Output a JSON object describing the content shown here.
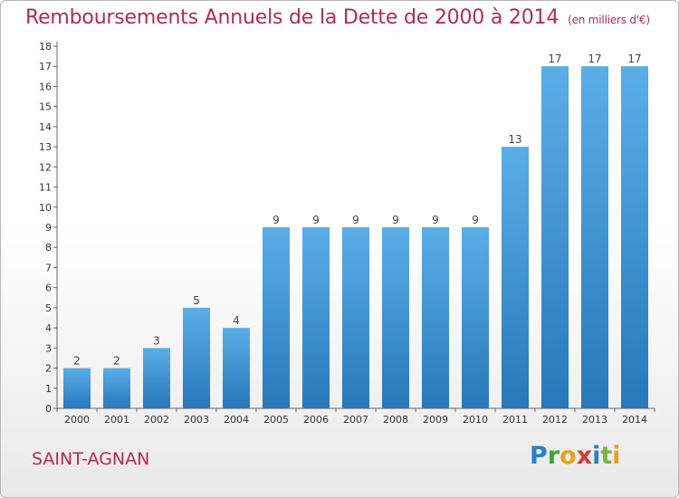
{
  "title": "Remboursements Annuels de la Dette de 2000 à 2014",
  "unit": "(en milliers d'€)",
  "place": "SAINT-AGNAN",
  "logo": {
    "text": "Proxiti",
    "colors": [
      "#2a80c8",
      "#3aa53a",
      "#e8a21a",
      "#d93a2b",
      "#2a80c8",
      "#7bb638",
      "#e8a21a"
    ]
  },
  "colors": {
    "title": "#b5285a",
    "bar_top": "#5aaee8",
    "bar_bottom": "#2678ba"
  },
  "chart_data": {
    "type": "bar",
    "title": "Remboursements Annuels de la Dette de 2000 à 2014",
    "xlabel": "",
    "ylabel": "",
    "categories": [
      "2000",
      "2001",
      "2002",
      "2003",
      "2004",
      "2005",
      "2006",
      "2007",
      "2008",
      "2009",
      "2010",
      "2011",
      "2012",
      "2013",
      "2014"
    ],
    "values": [
      2,
      2,
      3,
      5,
      4,
      9,
      9,
      9,
      9,
      9,
      9,
      13,
      17,
      17,
      17
    ],
    "data_labels": [
      "2",
      "2",
      "3",
      "5",
      "4",
      "9",
      "9",
      "9",
      "9",
      "9",
      "9",
      "13",
      "17",
      "17",
      "17"
    ],
    "ylim": [
      0,
      18
    ],
    "yticks": [
      "0",
      "1",
      "2",
      "3",
      "4",
      "5",
      "6",
      "7",
      "8",
      "9",
      "10",
      "11",
      "12",
      "13",
      "14",
      "15",
      "16",
      "17",
      "18"
    ],
    "grid": false,
    "legend": "none"
  }
}
